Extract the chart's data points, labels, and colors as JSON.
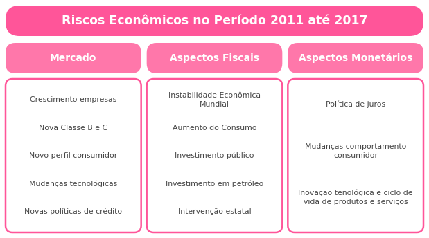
{
  "title": "Riscos Econômicos no Período 2011 até 2017",
  "title_bg": "#FF5599",
  "title_color": "#FFFFFF",
  "header_bg": "#FF77AA",
  "header_color": "#FFFFFF",
  "box_bg": "#FFFFFF",
  "box_border": "#FF5599",
  "text_color": "#444444",
  "bg_color": "#FFFFFF",
  "headers": [
    "Mercado",
    "Aspectos Fiscais",
    "Aspectos Monetários"
  ],
  "col1_items": [
    "Crescimento empresas",
    "Nova Classe B e C",
    "Novo perfil consumidor",
    "Mudanças tecnológicas",
    "Novas políticas de crédito"
  ],
  "col2_items": [
    "Instabilidade Econômica\nMundial",
    "Aumento do Consumo",
    "Investimento público",
    "Investimento em petróleo",
    "Intervenção estatal"
  ],
  "col3_items": [
    "Política de juros",
    "Mudanças comportamento\nconsumidor",
    "Inovação tenológica e ciclo de\nvida de produtos e serviços"
  ],
  "fig_w": 6.19,
  "fig_h": 3.44,
  "dpi": 100
}
